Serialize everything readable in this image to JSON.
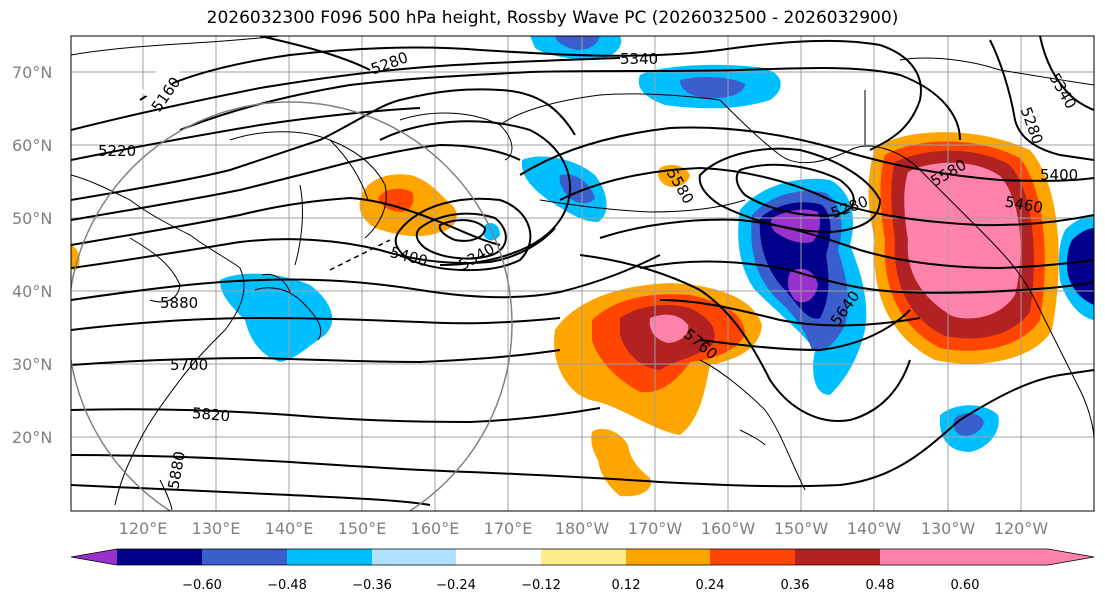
{
  "title": "2026032300 F096 500 hPa height, Rossby Wave PC (2026032500 - 2026032900)",
  "lat_labels": [
    "70°N",
    "60°N",
    "50°N",
    "40°N",
    "30°N",
    "20°N"
  ],
  "lon_labels": [
    "120°E",
    "130°E",
    "140°E",
    "150°E",
    "160°E",
    "170°E",
    "180°W",
    "170°W",
    "160°W",
    "150°W",
    "140°W",
    "130°W",
    "120°W"
  ],
  "colorbar": {
    "ticks": [
      "−0.60",
      "−0.48",
      "−0.36",
      "−0.24",
      "−0.12",
      "0.12",
      "0.24",
      "0.36",
      "0.48",
      "0.60"
    ],
    "colors": [
      "#9932cc",
      "#00008b",
      "#3a5fcd",
      "#00bfff",
      "#b0e2ff",
      "#ffffff",
      "#ffec8b",
      "#ffa500",
      "#ff4500",
      "#b22222",
      "#ff82ab"
    ]
  },
  "contour_labels": [
    "5160",
    "5220",
    "5280",
    "5340",
    "5400",
    "5340",
    "5280",
    "5460",
    "5580",
    "5640",
    "5700",
    "5760",
    "5820",
    "5880",
    "5280",
    "5340",
    "5400",
    "5580",
    "5880",
    "5400"
  ]
}
